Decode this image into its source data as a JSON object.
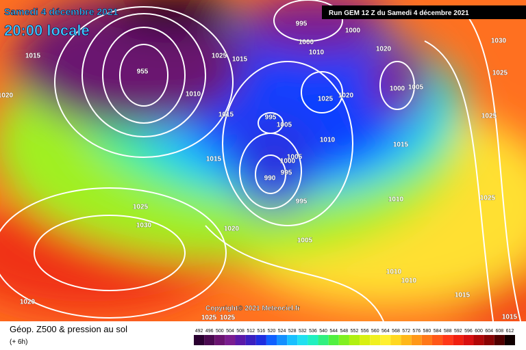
{
  "header": {
    "date": "Samedi 4 décembre 2021",
    "time": "20:00 locale",
    "run": "Run GEM 12 Z du Samedi 4 décembre 2021"
  },
  "copyright": "Copyright© 2021 Meteociel.fr",
  "legend": {
    "title": "Géop. Z500 & pression au sol",
    "step": "(+ 6h)",
    "ticks": [
      492,
      496,
      500,
      504,
      508,
      512,
      516,
      520,
      524,
      528,
      532,
      536,
      540,
      544,
      548,
      552,
      556,
      560,
      564,
      568,
      572,
      576,
      580,
      584,
      588,
      592,
      596,
      600,
      604,
      608,
      612
    ],
    "colors": [
      "#2a0030",
      "#4a0a50",
      "#6a1470",
      "#7a1e90",
      "#5a1aa8",
      "#3a20c0",
      "#1e2ee0",
      "#1060ff",
      "#1490ff",
      "#18c0ff",
      "#20e0f0",
      "#20f0c0",
      "#30f080",
      "#50f040",
      "#80f020",
      "#b0f010",
      "#d8f010",
      "#f0f020",
      "#fff030",
      "#ffd820",
      "#ffb818",
      "#ff9818",
      "#ff7818",
      "#ff5818",
      "#ff3818",
      "#f02010",
      "#d81010",
      "#b00808",
      "#880404",
      "#500000",
      "#100000"
    ]
  },
  "isobar_labels": [
    995,
    1000,
    1000,
    1010,
    1020,
    1015,
    1025,
    1015,
    955,
    1010,
    1025,
    1020,
    1000,
    1005,
    1020,
    1015,
    995,
    1005,
    1010,
    1015,
    1015,
    1005,
    1000,
    995,
    990,
    995,
    1010,
    1025,
    1030,
    1020,
    1005,
    1010,
    1010,
    1020,
    1030,
    1025,
    1025,
    1025,
    1015,
    1015,
    1025,
    1025
  ]
}
